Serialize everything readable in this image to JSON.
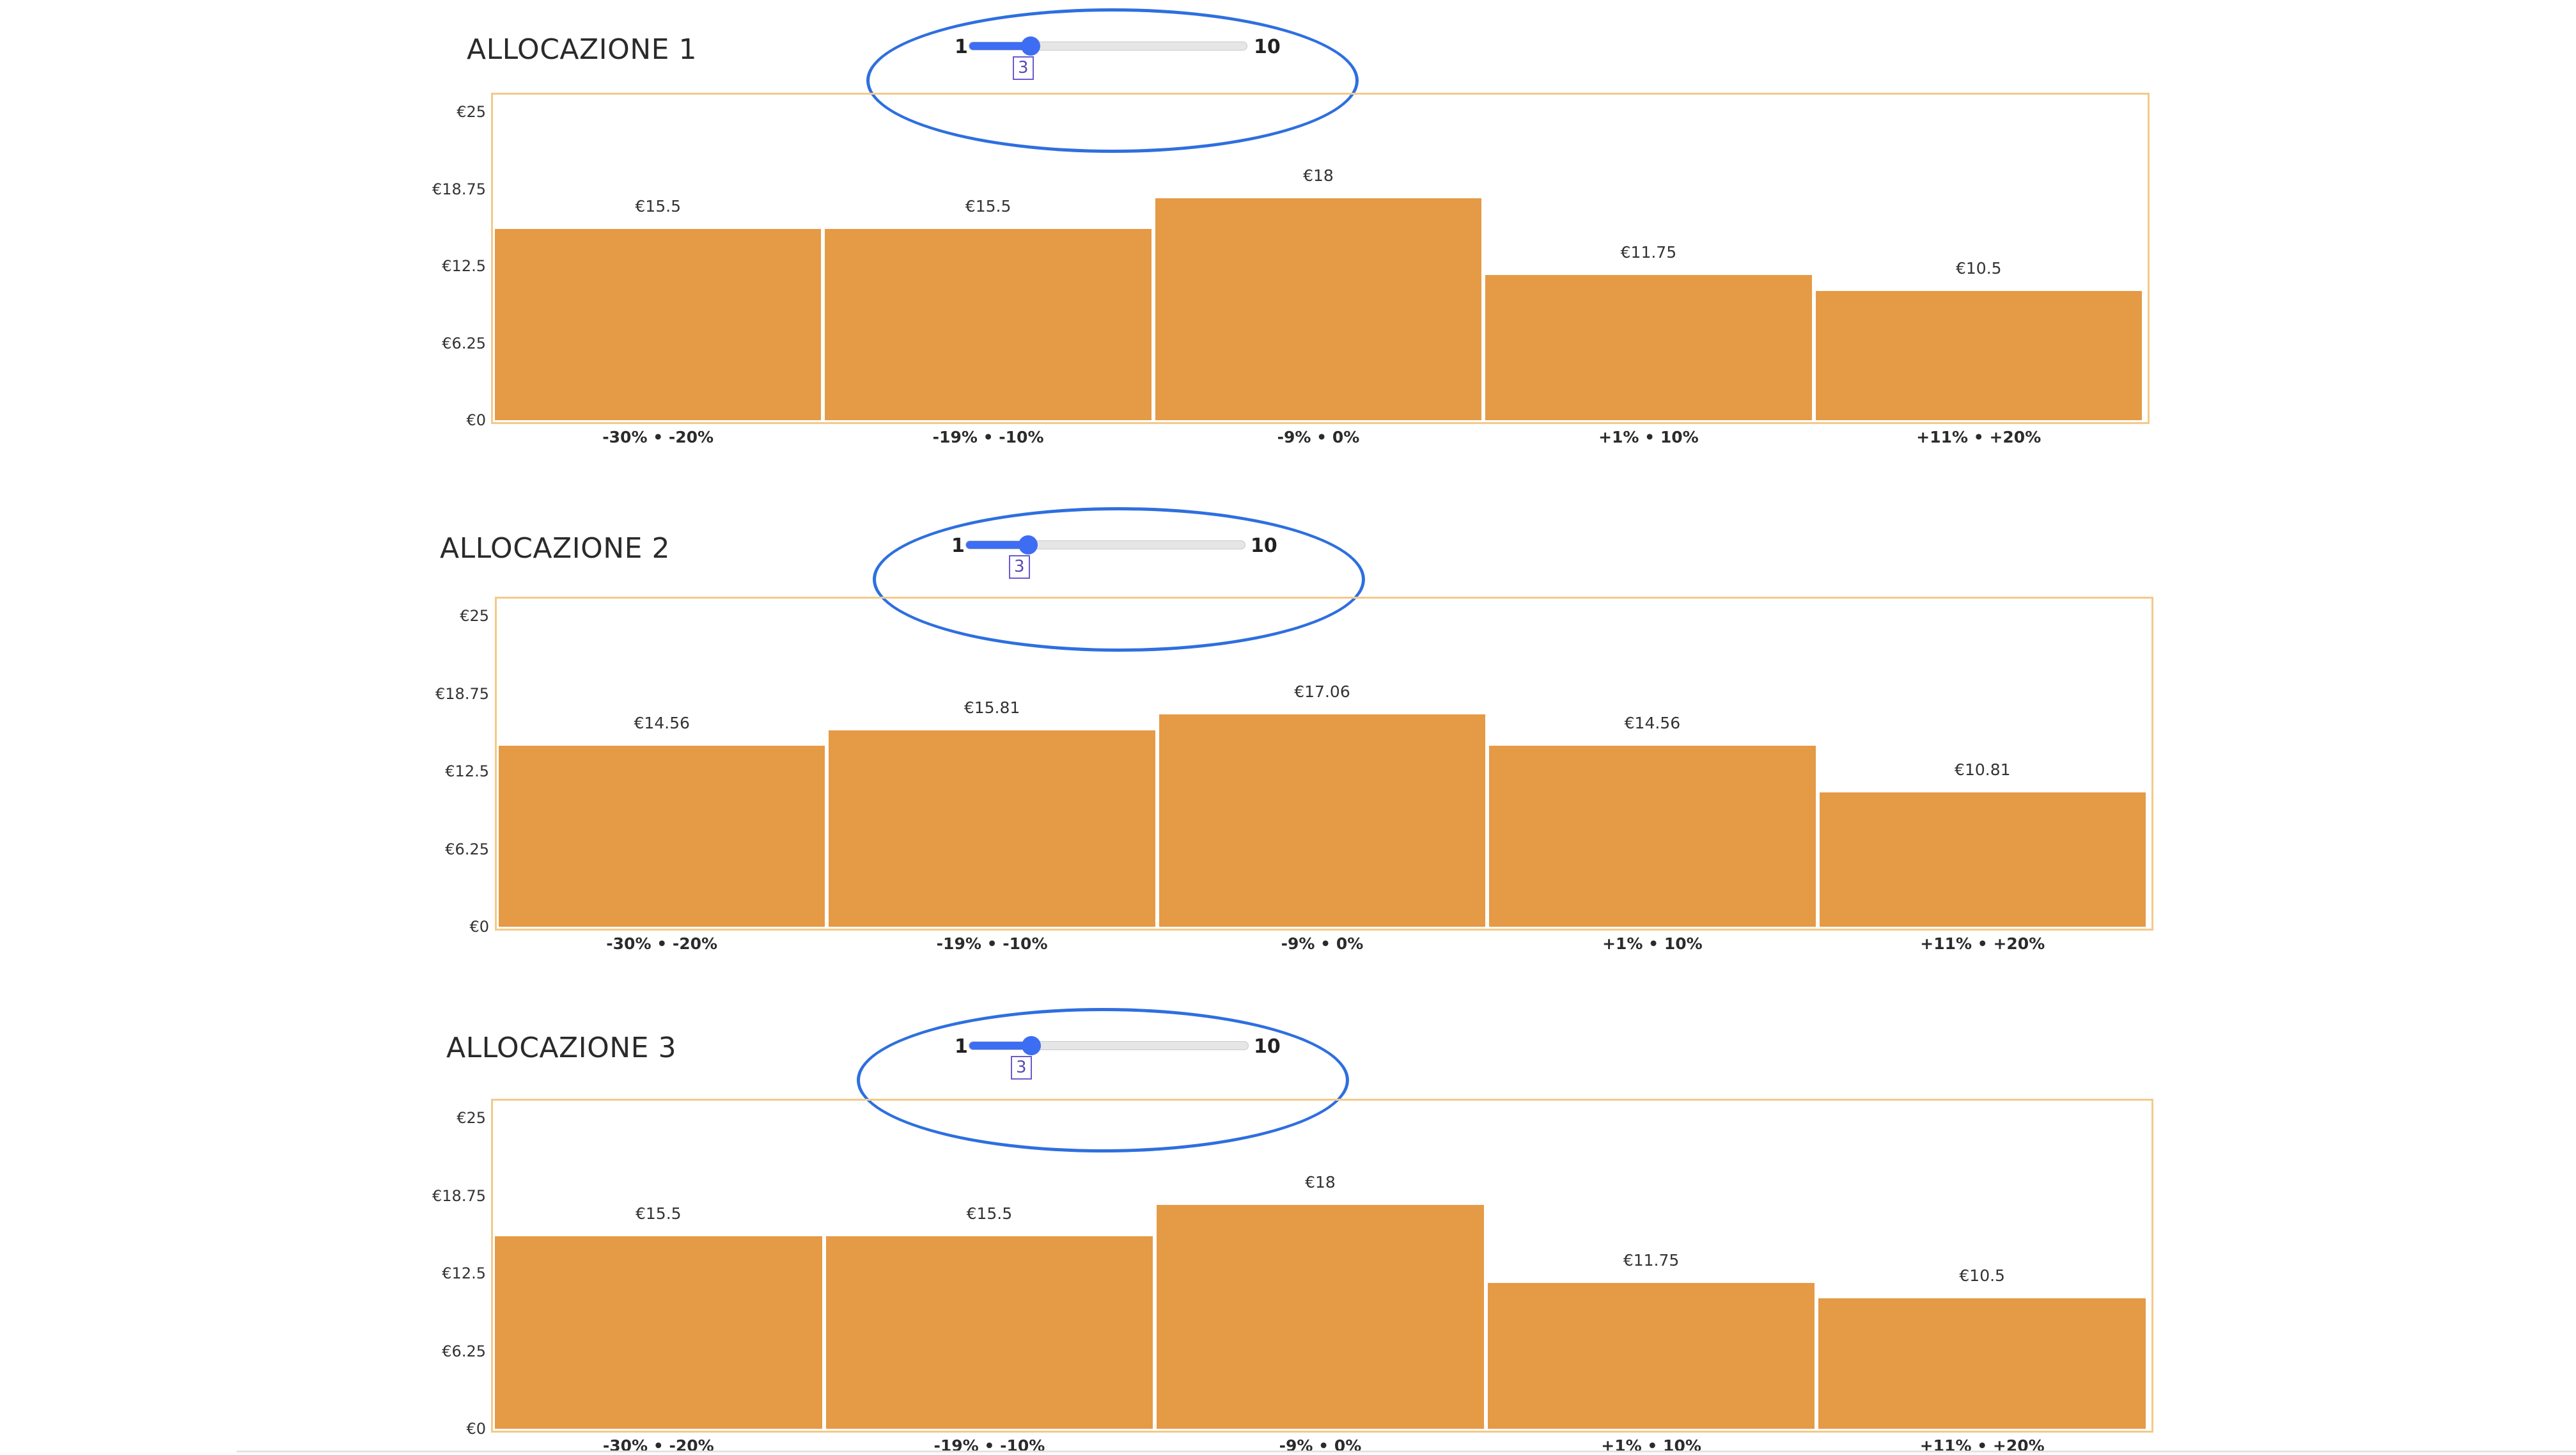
{
  "colors": {
    "bar": "#e59a46",
    "plot_border": "#f3c98a",
    "slider_accent": "#3d6df2",
    "annotation_ellipse": "#2e6fe0",
    "value_box": "#6a5ad0"
  },
  "y_ticks": [
    "€25",
    "€18.75",
    "€12.5",
    "€6.25",
    "€0"
  ],
  "sections": [
    {
      "title": "ALLOCAZIONE 1",
      "slider": {
        "min_label": "1",
        "max_label": "10",
        "min": 1,
        "max": 10,
        "value": 3,
        "value_label": "3"
      }
    },
    {
      "title": "ALLOCAZIONE 2",
      "slider": {
        "min_label": "1",
        "max_label": "10",
        "min": 1,
        "max": 10,
        "value": 3,
        "value_label": "3"
      }
    },
    {
      "title": "ALLOCAZIONE 3",
      "slider": {
        "min_label": "1",
        "max_label": "10",
        "min": 1,
        "max": 10,
        "value": 3,
        "value_label": "3"
      }
    }
  ],
  "chart_data": [
    {
      "type": "bar",
      "title": "ALLOCAZIONE 1",
      "categories": [
        "-30% • -20%",
        "-19% • -10%",
        "-9% • 0%",
        "+1% • 10%",
        "+11% • +20%"
      ],
      "values": [
        15.5,
        15.5,
        18,
        11.75,
        10.5
      ],
      "value_labels": [
        "€15.5",
        "€15.5",
        "€18",
        "€11.75",
        "€10.5"
      ],
      "ylim": [
        0,
        25
      ],
      "y_ticks": [
        25,
        18.75,
        12.5,
        6.25,
        0
      ],
      "xlabel": "",
      "ylabel": "",
      "grid": false
    },
    {
      "type": "bar",
      "title": "ALLOCAZIONE 2",
      "categories": [
        "-30% • -20%",
        "-19% • -10%",
        "-9% • 0%",
        "+1% • 10%",
        "+11% • +20%"
      ],
      "values": [
        14.56,
        15.81,
        17.06,
        14.56,
        10.81
      ],
      "value_labels": [
        "€14.56",
        "€15.81",
        "€17.06",
        "€14.56",
        "€10.81"
      ],
      "ylim": [
        0,
        25
      ],
      "y_ticks": [
        25,
        18.75,
        12.5,
        6.25,
        0
      ],
      "xlabel": "",
      "ylabel": "",
      "grid": false
    },
    {
      "type": "bar",
      "title": "ALLOCAZIONE 3",
      "categories": [
        "-30% • -20%",
        "-19% • -10%",
        "-9% • 0%",
        "+1% • 10%",
        "+11% • +20%"
      ],
      "values": [
        15.5,
        15.5,
        18,
        11.75,
        10.5
      ],
      "value_labels": [
        "€15.5",
        "€15.5",
        "€18",
        "€11.75",
        "€10.5"
      ],
      "ylim": [
        0,
        25
      ],
      "y_ticks": [
        25,
        18.75,
        12.5,
        6.25,
        0
      ],
      "xlabel": "",
      "ylabel": "",
      "grid": false
    }
  ]
}
